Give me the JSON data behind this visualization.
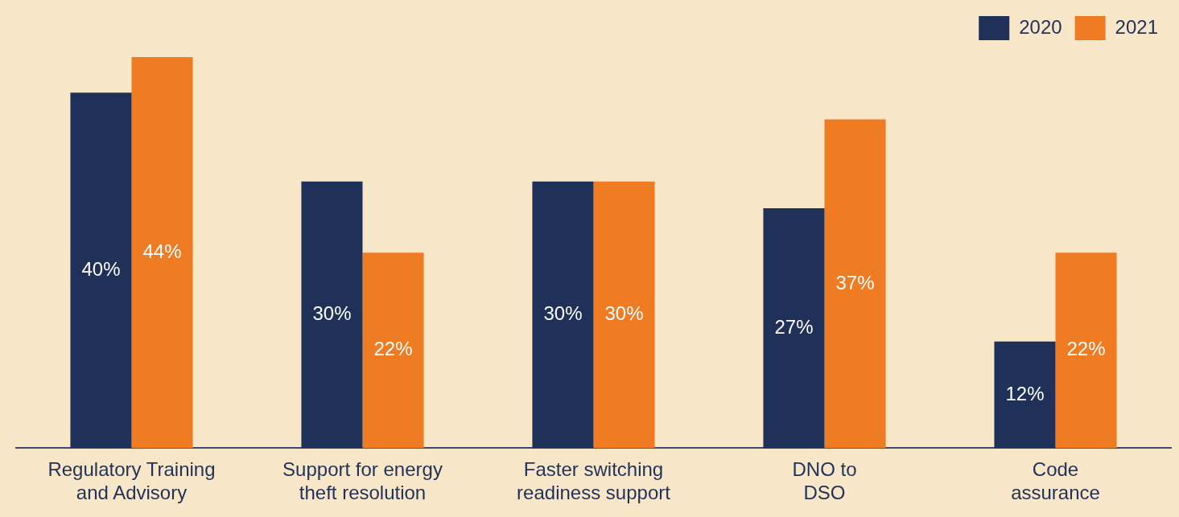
{
  "chart_data": {
    "type": "bar",
    "categories": [
      "Regulatory Training and Advisory",
      "Support for energy theft resolution",
      "Faster switching readiness support",
      "DNO to DSO",
      "Code assurance"
    ],
    "series": [
      {
        "name": "2020",
        "color": "#1f3159",
        "values": [
          40,
          30,
          30,
          27,
          12
        ],
        "value_labels": [
          "40%",
          "30%",
          "30%",
          "27%",
          "12%"
        ]
      },
      {
        "name": "2021",
        "color": "#ef7b22",
        "values": [
          44,
          22,
          30,
          37,
          22
        ],
        "value_labels": [
          "44%",
          "22%",
          "30%",
          "37%",
          "22%"
        ]
      }
    ],
    "legend": "top right",
    "grid": false
  }
}
